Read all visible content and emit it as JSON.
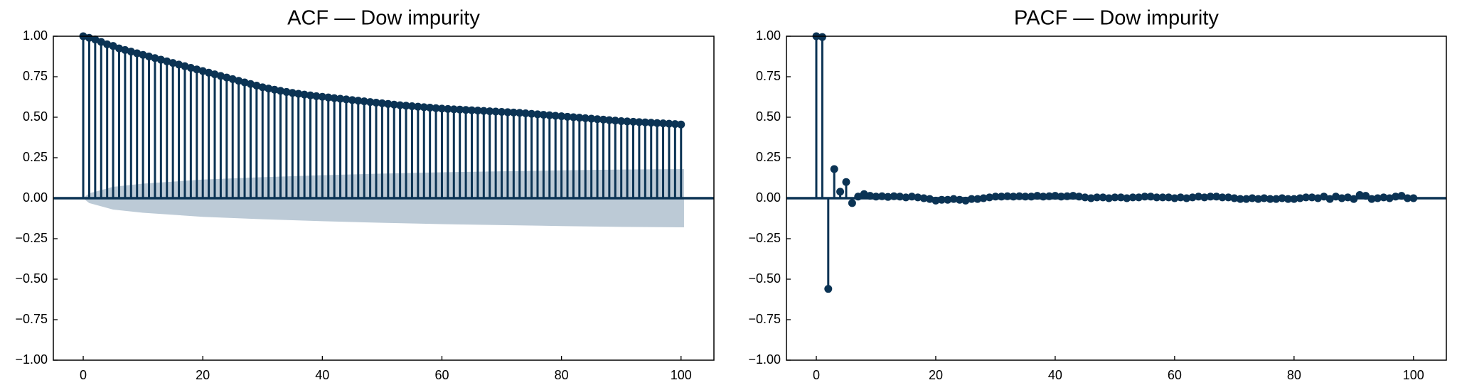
{
  "chart_data": [
    {
      "type": "stem",
      "title": "ACF — Dow impurity",
      "color": "#0b3354",
      "x": [
        0,
        1,
        2,
        3,
        4,
        5,
        6,
        7,
        8,
        9,
        10,
        11,
        12,
        13,
        14,
        15,
        16,
        17,
        18,
        19,
        20,
        21,
        22,
        23,
        24,
        25,
        26,
        27,
        28,
        29,
        30,
        31,
        32,
        33,
        34,
        35,
        36,
        37,
        38,
        39,
        40,
        41,
        42,
        43,
        44,
        45,
        46,
        47,
        48,
        49,
        50,
        51,
        52,
        53,
        54,
        55,
        56,
        57,
        58,
        59,
        60,
        61,
        62,
        63,
        64,
        65,
        66,
        67,
        68,
        69,
        70,
        71,
        72,
        73,
        74,
        75,
        76,
        77,
        78,
        79,
        80,
        81,
        82,
        83,
        84,
        85,
        86,
        87,
        88,
        89,
        90,
        91,
        92,
        93,
        94,
        95,
        96,
        97,
        98,
        99,
        100
      ],
      "values": [
        1.0,
        0.99,
        0.98,
        0.965,
        0.95,
        0.94,
        0.925,
        0.915,
        0.905,
        0.895,
        0.885,
        0.875,
        0.865,
        0.855,
        0.845,
        0.835,
        0.825,
        0.815,
        0.805,
        0.795,
        0.785,
        0.775,
        0.765,
        0.755,
        0.745,
        0.735,
        0.725,
        0.715,
        0.705,
        0.695,
        0.685,
        0.677,
        0.67,
        0.663,
        0.656,
        0.65,
        0.645,
        0.64,
        0.635,
        0.63,
        0.626,
        0.622,
        0.618,
        0.614,
        0.61,
        0.606,
        0.602,
        0.598,
        0.594,
        0.59,
        0.586,
        0.582,
        0.578,
        0.574,
        0.571,
        0.568,
        0.565,
        0.562,
        0.559,
        0.556,
        0.553,
        0.551,
        0.549,
        0.547,
        0.545,
        0.543,
        0.541,
        0.539,
        0.537,
        0.535,
        0.533,
        0.531,
        0.529,
        0.527,
        0.524,
        0.521,
        0.518,
        0.515,
        0.512,
        0.509,
        0.506,
        0.503,
        0.5,
        0.497,
        0.494,
        0.491,
        0.488,
        0.485,
        0.482,
        0.479,
        0.476,
        0.474,
        0.472,
        0.47,
        0.468,
        0.466,
        0.464,
        0.462,
        0.46,
        0.458,
        0.455
      ],
      "confidence_band": {
        "color": "#bccad6",
        "x": [
          0,
          1,
          5,
          10,
          20,
          30,
          40,
          50,
          60,
          70,
          80,
          90,
          100.5
        ],
        "upper": [
          0.0,
          0.03,
          0.07,
          0.09,
          0.115,
          0.13,
          0.142,
          0.152,
          0.16,
          0.166,
          0.172,
          0.177,
          0.18
        ],
        "lower": [
          0.0,
          -0.03,
          -0.07,
          -0.09,
          -0.115,
          -0.13,
          -0.142,
          -0.152,
          -0.16,
          -0.166,
          -0.172,
          -0.177,
          -0.18
        ]
      },
      "xlim": [
        -5,
        105.5
      ],
      "xticks": [
        0,
        20,
        40,
        60,
        80,
        100
      ],
      "ylim": [
        -1,
        1
      ],
      "yticks": [
        {
          "value": -1,
          "label": "−1.00"
        },
        {
          "value": -0.75,
          "label": "−0.75"
        },
        {
          "value": -0.5,
          "label": "−0.50"
        },
        {
          "value": -0.25,
          "label": "−0.25"
        },
        {
          "value": 0,
          "label": "0.00"
        },
        {
          "value": 0.25,
          "label": "0.25"
        },
        {
          "value": 0.5,
          "label": "0.50"
        },
        {
          "value": 0.75,
          "label": "0.75"
        },
        {
          "value": 1,
          "label": "1.00"
        }
      ]
    },
    {
      "type": "stem",
      "title": "PACF — Dow impurity",
      "color": "#0b3354",
      "x": [
        0,
        1,
        2,
        3,
        4,
        5,
        6,
        7,
        8,
        9,
        10,
        11,
        12,
        13,
        14,
        15,
        16,
        17,
        18,
        19,
        20,
        21,
        22,
        23,
        24,
        25,
        26,
        27,
        28,
        29,
        30,
        31,
        32,
        33,
        34,
        35,
        36,
        37,
        38,
        39,
        40,
        41,
        42,
        43,
        44,
        45,
        46,
        47,
        48,
        49,
        50,
        51,
        52,
        53,
        54,
        55,
        56,
        57,
        58,
        59,
        60,
        61,
        62,
        63,
        64,
        65,
        66,
        67,
        68,
        69,
        70,
        71,
        72,
        73,
        74,
        75,
        76,
        77,
        78,
        79,
        80,
        81,
        82,
        83,
        84,
        85,
        86,
        87,
        88,
        89,
        90,
        91,
        92,
        93,
        94,
        95,
        96,
        97,
        98,
        99,
        100
      ],
      "values": [
        1.0,
        0.995,
        -0.56,
        0.18,
        0.04,
        0.1,
        -0.03,
        0.01,
        0.025,
        0.015,
        0.01,
        0.012,
        0.008,
        0.012,
        0.01,
        0.005,
        0.01,
        0.005,
        0.0,
        -0.005,
        -0.015,
        -0.01,
        -0.01,
        -0.005,
        -0.01,
        -0.015,
        -0.005,
        -0.005,
        0.0,
        0.005,
        0.01,
        0.01,
        0.012,
        0.01,
        0.012,
        0.01,
        0.01,
        0.015,
        0.01,
        0.012,
        0.015,
        0.01,
        0.012,
        0.015,
        0.01,
        0.005,
        0.0,
        0.005,
        0.005,
        0.0,
        0.005,
        0.005,
        0.0,
        0.005,
        0.005,
        0.01,
        0.01,
        0.005,
        0.005,
        0.005,
        0.0,
        0.005,
        0.0,
        0.005,
        0.01,
        0.005,
        0.01,
        0.01,
        0.005,
        0.005,
        0.0,
        -0.005,
        -0.005,
        0.0,
        -0.005,
        0.0,
        -0.005,
        -0.005,
        0.0,
        -0.005,
        -0.005,
        0.0,
        0.005,
        0.005,
        0.0,
        0.01,
        -0.005,
        0.01,
        0.0,
        0.005,
        -0.005,
        0.02,
        0.015,
        -0.005,
        0.0,
        0.005,
        0.0,
        0.01,
        0.015,
        0.0,
        0.0
      ],
      "xlim": [
        -5,
        105.5
      ],
      "xticks": [
        0,
        20,
        40,
        60,
        80,
        100
      ],
      "ylim": [
        -1,
        1
      ],
      "yticks": [
        {
          "value": -1,
          "label": "−1.00"
        },
        {
          "value": -0.75,
          "label": "−0.75"
        },
        {
          "value": -0.5,
          "label": "−0.50"
        },
        {
          "value": -0.25,
          "label": "−0.25"
        },
        {
          "value": 0,
          "label": "0.00"
        },
        {
          "value": 0.25,
          "label": "0.25"
        },
        {
          "value": 0.5,
          "label": "0.50"
        },
        {
          "value": 0.75,
          "label": "0.75"
        },
        {
          "value": 1,
          "label": "1.00"
        }
      ]
    }
  ]
}
